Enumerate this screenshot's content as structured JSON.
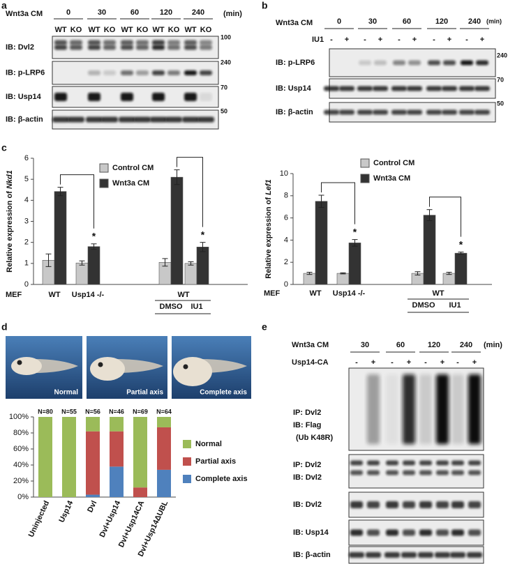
{
  "panel_a": {
    "label": "a",
    "treatment": "Wnt3a CM",
    "times": [
      "0",
      "30",
      "60",
      "120",
      "240"
    ],
    "unit": "(min)",
    "genotypes": [
      "WT",
      "KO"
    ],
    "blots": [
      {
        "label": "IB: Dvl2",
        "mw": "100"
      },
      {
        "label": "IB: p-LRP6",
        "mw": "240"
      },
      {
        "label": "IB: Usp14",
        "mw": "70"
      },
      {
        "label": "IB: β-actin",
        "mw": "50"
      }
    ]
  },
  "panel_b": {
    "label": "b",
    "treatment": "Wnt3a CM",
    "times": [
      "0",
      "30",
      "60",
      "120",
      "240"
    ],
    "unit": "(min)",
    "inhibitor": "IU1",
    "signs": [
      "-",
      "+"
    ],
    "blots": [
      {
        "label": "IB: p-LRP6",
        "mw": "240"
      },
      {
        "label": "IB: Usp14",
        "mw": "70"
      },
      {
        "label": "IB: β-actin",
        "mw": "50"
      }
    ]
  },
  "panel_c": {
    "label": "c"
  },
  "panel_d": {
    "label": "d",
    "photos": [
      "Normal",
      "Partial axis",
      "Complete axis"
    ]
  },
  "panel_e": {
    "label": "e",
    "treatment": "Wnt3a CM",
    "times": [
      "30",
      "60",
      "120",
      "240"
    ],
    "unit": "(min)",
    "construct": "Usp14-CA",
    "signs": [
      "-",
      "+"
    ],
    "blots": [
      {
        "lines": [
          "IP: Dvl2",
          "IB: Flag",
          "(Ub K48R)"
        ]
      },
      {
        "lines": [
          "IP: Dvl2",
          "IB: Dvl2"
        ]
      },
      {
        "lines": [
          "IB: Dvl2"
        ]
      },
      {
        "lines": [
          "IB: Usp14"
        ]
      },
      {
        "lines": [
          "IB: β-actin"
        ]
      }
    ]
  },
  "chart_data": [
    {
      "type": "bar",
      "ylabel": [
        "Relative expression of ",
        "Nkd1"
      ],
      "categories": [
        "WT",
        "Usp14 -/-",
        "DMSO",
        "IU1"
      ],
      "group_label": "WT",
      "row_label": "MEF",
      "series": [
        {
          "name": "Control CM",
          "color": "#c8c8c8",
          "values": [
            1.15,
            1.02,
            1.05,
            1.0
          ],
          "errors": [
            0.3,
            0.1,
            0.18,
            0.08
          ]
        },
        {
          "name": "Wnt3a CM",
          "color": "#333333",
          "values": [
            4.42,
            1.8,
            5.1,
            1.78
          ],
          "errors": [
            0.2,
            0.13,
            0.35,
            0.22
          ]
        }
      ],
      "ylim": [
        0,
        6
      ],
      "yticks": [
        0,
        1,
        2,
        3,
        4,
        5,
        6
      ],
      "annotations": [
        {
          "text": "*",
          "category": "Usp14 -/-"
        },
        {
          "text": "*",
          "category": "IU1"
        }
      ]
    },
    {
      "type": "bar",
      "ylabel": [
        "Relative expression of ",
        "Lef1"
      ],
      "categories": [
        "WT",
        "Usp14 -/-",
        "DMSO",
        "IU1"
      ],
      "group_label": "WT",
      "row_label": "MEF",
      "series": [
        {
          "name": "Control CM",
          "color": "#c8c8c8",
          "values": [
            1.0,
            1.0,
            1.0,
            1.0
          ],
          "errors": [
            0.1,
            0.05,
            0.15,
            0.1
          ]
        },
        {
          "name": "Wnt3a CM",
          "color": "#333333",
          "values": [
            7.5,
            3.75,
            6.25,
            2.82
          ],
          "errors": [
            0.55,
            0.3,
            0.5,
            0.1
          ]
        }
      ],
      "ylim": [
        0,
        10
      ],
      "yticks": [
        0,
        2,
        4,
        6,
        8,
        10
      ],
      "annotations": [
        {
          "text": "*",
          "category": "Usp14 -/-"
        },
        {
          "text": "*",
          "category": "IU1"
        }
      ]
    },
    {
      "type": "stacked_bar",
      "categories": [
        "Uninjected",
        "Usp14",
        "Dvl",
        "Dvl+Usp14",
        "Dvl+Usp14CA",
        "Dvl+Usp14ΔUBL"
      ],
      "n_labels": [
        "N=80",
        "N=55",
        "N=56",
        "N=46",
        "N=69",
        "N=64"
      ],
      "series": [
        {
          "name": "Normal",
          "color": "#9bbb59",
          "values": [
            100,
            100,
            18,
            18,
            88,
            13
          ]
        },
        {
          "name": "Partial axis",
          "color": "#c0504d",
          "values": [
            0,
            0,
            79,
            44,
            12,
            53
          ]
        },
        {
          "name": "Complete axis",
          "color": "#4f81bd",
          "values": [
            0,
            0,
            3,
            38,
            0,
            34
          ]
        }
      ],
      "ylim": [
        0,
        100
      ],
      "yticks": [
        {
          "value": 0,
          "label": "0%"
        },
        {
          "value": 20,
          "label": "20%"
        },
        {
          "value": 40,
          "label": "40%"
        },
        {
          "value": 60,
          "label": "60%"
        },
        {
          "value": 80,
          "label": "80%"
        },
        {
          "value": 100,
          "label": "100%"
        }
      ]
    }
  ]
}
